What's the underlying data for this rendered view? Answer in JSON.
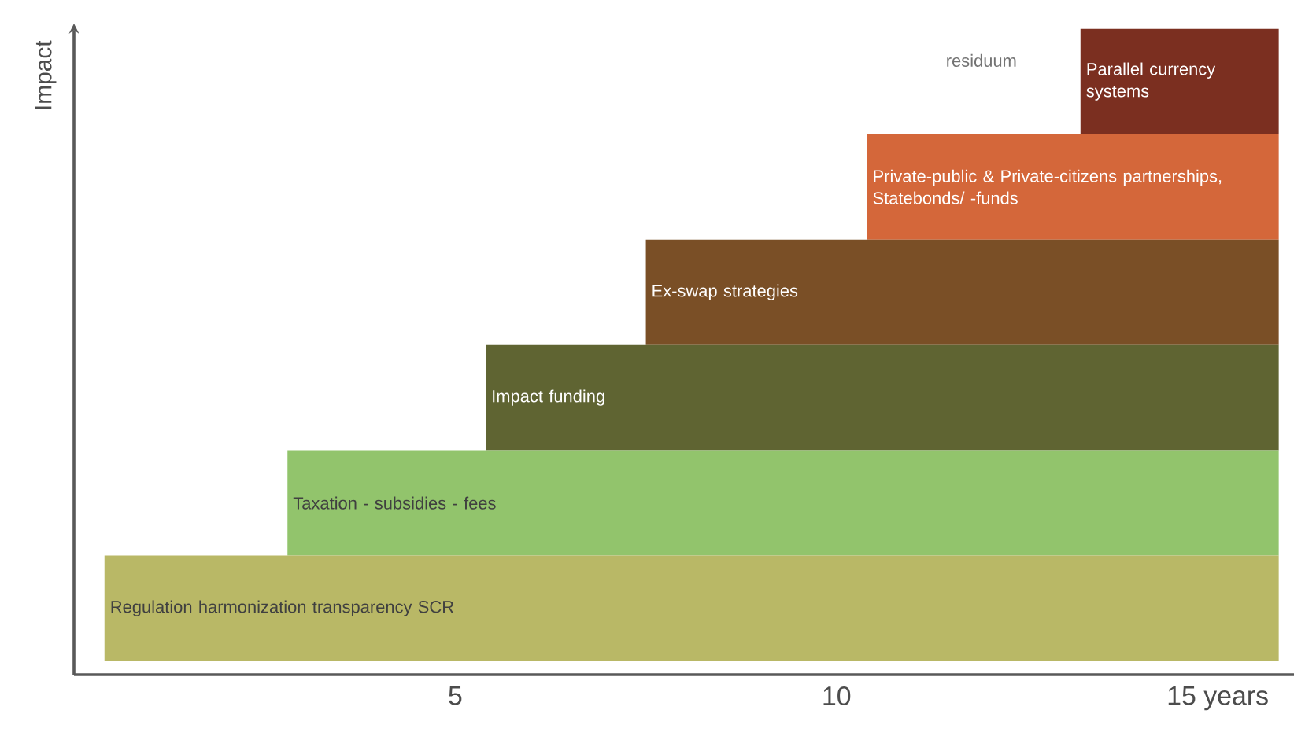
{
  "chart_data": {
    "type": "bar",
    "orientation": "horizontal",
    "ylabel": "Impact",
    "categories": [
      "Parallel currency systems",
      "Private-public & Private-citizens partnerships, Statebonds/ -funds",
      "Ex-swap strategies",
      "Impact funding",
      "Taxation - subsidies -  fees",
      "Regulation  harmonization  transparency SCR"
    ],
    "base": [
      13.2,
      10.4,
      7.5,
      5.4,
      2.8,
      0.4
    ],
    "values": [
      2.6,
      5.4,
      8.3,
      10.4,
      13.0,
      15.4
    ],
    "colors": [
      "#7b2f20",
      "#d4673a",
      "#7a4f26",
      "#5f6432",
      "#92c46c",
      "#b9b866"
    ],
    "xlim": [
      0,
      16
    ],
    "xticks": [
      5,
      10,
      {
        "value": 15,
        "label": "15 years"
      }
    ],
    "tick_labels": "x",
    "annotations": [
      "residuum"
    ]
  }
}
